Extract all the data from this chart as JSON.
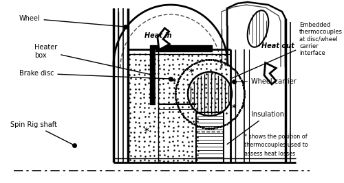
{
  "bg_color": "#ffffff",
  "line_color": "#000000",
  "fig_width": 5.0,
  "fig_height": 2.67,
  "labels": {
    "wheel": "Wheel",
    "heater_box": "Heater\nbox",
    "brake_disc": "Brake disc",
    "spin_rig": "Spin Rig shaft",
    "heat_in": "Heat in",
    "heat_out": "Heat out",
    "embedded": "Embedded\nthermocouples\nat disc/wheel\ncarrier\ninterface",
    "wheel_carrier": "Wheel carrier",
    "insulation": "Insulation",
    "footnote": "* shows the position of\nthermocouples used to\nassess heat losses"
  }
}
